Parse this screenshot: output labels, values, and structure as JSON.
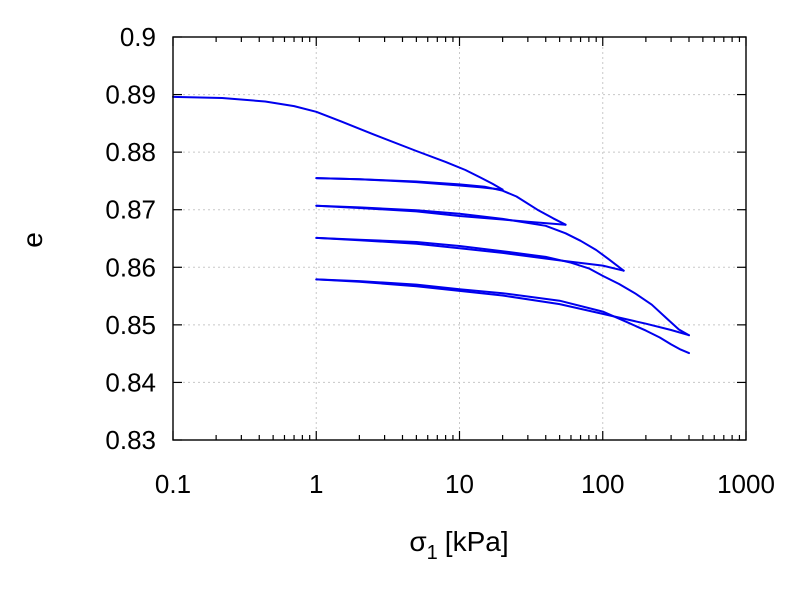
{
  "chart_data": {
    "type": "line",
    "title": "",
    "xlabel": "σ",
    "xlabel_sub": "1",
    "xlabel_unit": "[kPa]",
    "ylabel": "e",
    "xscale": "log",
    "xlim": [
      0.1,
      1000
    ],
    "ylim": [
      0.83,
      0.9
    ],
    "grid": true,
    "xticks": [
      0.1,
      1,
      10,
      100,
      1000
    ],
    "xtick_labels": [
      "0.1",
      "1",
      "10",
      "100",
      "1000"
    ],
    "yticks": [
      0.83,
      0.84,
      0.85,
      0.86,
      0.87,
      0.88,
      0.89,
      0.9
    ],
    "ytick_labels": [
      "0.83",
      "0.84",
      "0.85",
      "0.86",
      "0.87",
      "0.88",
      "0.89",
      "0.9"
    ],
    "line_color": "#0000ee",
    "series": [
      {
        "x": [
          0.1,
          0.22,
          0.44,
          0.7,
          1.0,
          1.5,
          2.5,
          5.0,
          8.0,
          11.0,
          14.0,
          17.0,
          20.0
        ],
        "y": [
          0.8896,
          0.8894,
          0.8888,
          0.888,
          0.887,
          0.8853,
          0.8831,
          0.8802,
          0.8783,
          0.8769,
          0.8756,
          0.8745,
          0.8735
        ]
      },
      {
        "x": [
          20.0,
          14.0,
          10.0,
          5.0,
          2.0,
          1.0
        ],
        "y": [
          0.8735,
          0.8739,
          0.8742,
          0.8748,
          0.8753,
          0.8755
        ]
      },
      {
        "x": [
          1.0,
          2.0,
          5.0,
          10.0,
          15.0,
          20.0,
          25.0,
          35.0,
          45.0,
          55.0
        ],
        "y": [
          0.8755,
          0.8753,
          0.8749,
          0.8744,
          0.874,
          0.8733,
          0.8723,
          0.87,
          0.8685,
          0.8674
        ]
      },
      {
        "x": [
          55.0,
          30.0,
          20.0,
          10.0,
          5.0,
          2.0,
          1.0
        ],
        "y": [
          0.8674,
          0.8679,
          0.8683,
          0.8689,
          0.8697,
          0.8703,
          0.8707
        ]
      },
      {
        "x": [
          1.0,
          2.0,
          5.0,
          10.0,
          20.0,
          40.0,
          55.0,
          70.0,
          90.0,
          110.0,
          140.0
        ],
        "y": [
          0.8707,
          0.8704,
          0.8699,
          0.8693,
          0.8684,
          0.8672,
          0.8659,
          0.8646,
          0.863,
          0.8614,
          0.8594
        ]
      },
      {
        "x": [
          140.0,
          100.0,
          50.0,
          20.0,
          10.0,
          5.0,
          2.0,
          1.0
        ],
        "y": [
          0.8594,
          0.8603,
          0.8612,
          0.8625,
          0.8633,
          0.8641,
          0.8647,
          0.8651
        ]
      },
      {
        "x": [
          1.0,
          2.0,
          5.0,
          10.0,
          20.0,
          40.0,
          60.0,
          80.0,
          100.0,
          130.0,
          170.0,
          220.0,
          280.0,
          340.0,
          400.0
        ],
        "y": [
          0.8651,
          0.8648,
          0.8644,
          0.8637,
          0.8628,
          0.8618,
          0.8608,
          0.8598,
          0.8585,
          0.8571,
          0.8554,
          0.8535,
          0.8511,
          0.8492,
          0.8482
        ]
      },
      {
        "x": [
          400.0,
          300.0,
          200.0,
          100.0,
          50.0,
          20.0,
          10.0,
          5.0,
          2.0,
          1.0
        ],
        "y": [
          0.8482,
          0.8491,
          0.8502,
          0.8519,
          0.8536,
          0.8551,
          0.8559,
          0.8567,
          0.8575,
          0.8579
        ]
      },
      {
        "x": [
          1.0,
          2.0,
          5.0,
          10.0,
          20.0,
          50.0,
          100.0,
          150.0,
          200.0,
          250.0,
          300.0,
          350.0,
          400.0
        ],
        "y": [
          0.8579,
          0.8576,
          0.857,
          0.8562,
          0.8555,
          0.8542,
          0.8523,
          0.8504,
          0.849,
          0.8478,
          0.8466,
          0.8457,
          0.8451
        ]
      }
    ]
  }
}
